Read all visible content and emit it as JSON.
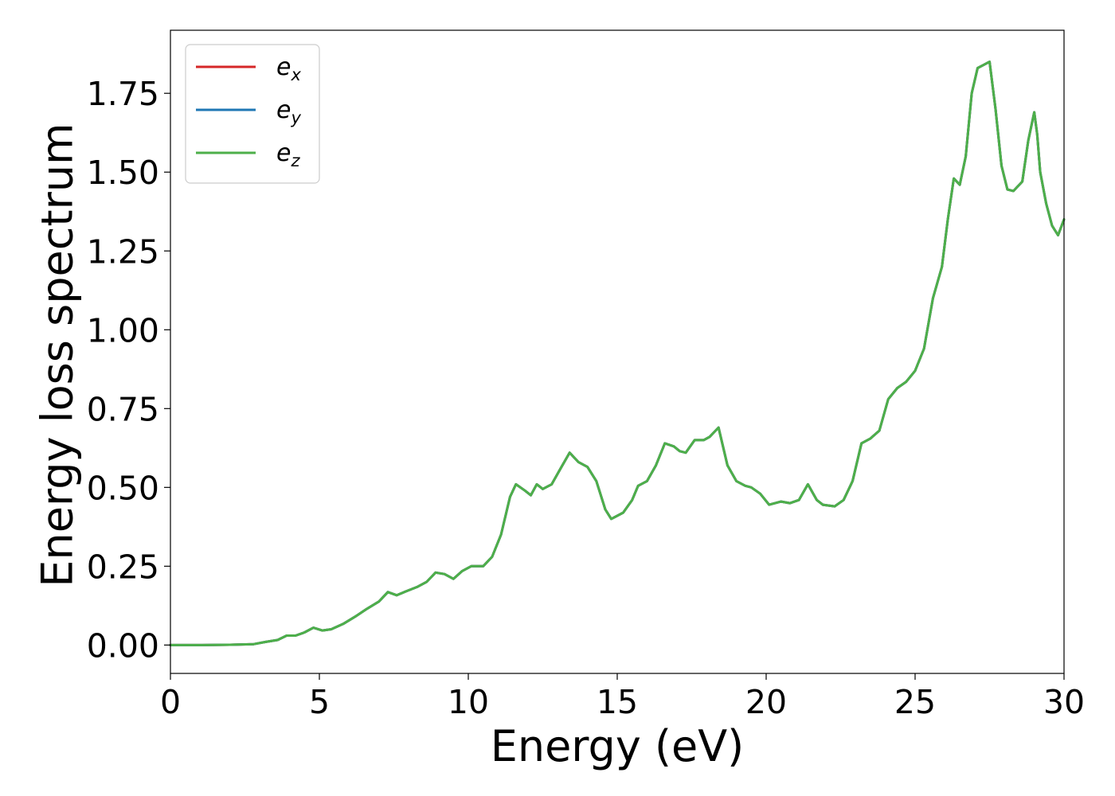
{
  "chart_data": {
    "type": "line",
    "title": "",
    "xlabel": "Energy (eV)",
    "ylabel": "Energy loss spectrum",
    "xlim": [
      0,
      30
    ],
    "ylim": [
      -0.09,
      1.95
    ],
    "x_ticks": [
      0,
      5,
      10,
      15,
      20,
      25,
      30
    ],
    "x_tick_labels": [
      "0",
      "5",
      "10",
      "15",
      "20",
      "25",
      "30"
    ],
    "y_ticks": [
      0.0,
      0.25,
      0.5,
      0.75,
      1.0,
      1.25,
      1.5,
      1.75
    ],
    "y_tick_labels": [
      "0.00",
      "0.25",
      "0.50",
      "0.75",
      "1.00",
      "1.25",
      "1.50",
      "1.75"
    ],
    "grid": false,
    "legend_position": "top-left",
    "x": [
      0,
      1,
      2,
      2.8,
      3.2,
      3.6,
      3.9,
      4.2,
      4.5,
      4.8,
      5.1,
      5.4,
      5.8,
      6.2,
      6.6,
      7.0,
      7.3,
      7.6,
      7.9,
      8.3,
      8.6,
      8.9,
      9.2,
      9.5,
      9.8,
      10.1,
      10.5,
      10.8,
      11.1,
      11.4,
      11.6,
      11.9,
      12.1,
      12.3,
      12.5,
      12.8,
      13.1,
      13.4,
      13.7,
      14.0,
      14.3,
      14.6,
      14.8,
      15.2,
      15.5,
      15.7,
      16.0,
      16.3,
      16.6,
      16.9,
      17.1,
      17.3,
      17.6,
      17.9,
      18.1,
      18.4,
      18.7,
      19.0,
      19.3,
      19.5,
      19.8,
      20.1,
      20.5,
      20.8,
      21.1,
      21.4,
      21.7,
      21.9,
      22.3,
      22.6,
      22.9,
      23.2,
      23.5,
      23.8,
      24.1,
      24.4,
      24.7,
      25.0,
      25.3,
      25.6,
      25.9,
      26.1,
      26.3,
      26.5,
      26.7,
      26.9,
      27.1,
      27.3,
      27.5,
      27.7,
      27.9,
      28.1,
      28.3,
      28.6,
      28.8,
      29.0,
      29.1,
      29.2,
      29.4,
      29.6,
      29.8,
      30.0
    ],
    "series": [
      {
        "name": "e_x",
        "color": "#d62728",
        "values": [
          0.0,
          0.0,
          0.001,
          0.003,
          0.01,
          0.016,
          0.03,
          0.03,
          0.04,
          0.055,
          0.046,
          0.05,
          0.067,
          0.09,
          0.115,
          0.138,
          0.168,
          0.158,
          0.17,
          0.185,
          0.2,
          0.23,
          0.225,
          0.21,
          0.235,
          0.25,
          0.25,
          0.28,
          0.35,
          0.47,
          0.51,
          0.49,
          0.475,
          0.51,
          0.495,
          0.51,
          0.56,
          0.61,
          0.58,
          0.565,
          0.52,
          0.43,
          0.4,
          0.42,
          0.46,
          0.505,
          0.52,
          0.57,
          0.64,
          0.63,
          0.615,
          0.61,
          0.65,
          0.65,
          0.66,
          0.69,
          0.57,
          0.52,
          0.505,
          0.5,
          0.48,
          0.445,
          0.455,
          0.45,
          0.46,
          0.51,
          0.46,
          0.445,
          0.44,
          0.46,
          0.52,
          0.64,
          0.655,
          0.68,
          0.78,
          0.815,
          0.835,
          0.87,
          0.94,
          1.1,
          1.2,
          1.35,
          1.48,
          1.46,
          1.55,
          1.75,
          1.83,
          1.84,
          1.85,
          1.7,
          1.52,
          1.445,
          1.44,
          1.47,
          1.6,
          1.69,
          1.62,
          1.5,
          1.4,
          1.33,
          1.3,
          1.35
        ]
      },
      {
        "name": "e_y",
        "color": "#1f77b4",
        "values": [
          0.0,
          0.0,
          0.001,
          0.003,
          0.01,
          0.016,
          0.03,
          0.03,
          0.04,
          0.055,
          0.046,
          0.05,
          0.067,
          0.09,
          0.115,
          0.138,
          0.168,
          0.158,
          0.17,
          0.185,
          0.2,
          0.23,
          0.225,
          0.21,
          0.235,
          0.25,
          0.25,
          0.28,
          0.35,
          0.47,
          0.51,
          0.49,
          0.475,
          0.51,
          0.495,
          0.51,
          0.56,
          0.61,
          0.58,
          0.565,
          0.52,
          0.43,
          0.4,
          0.42,
          0.46,
          0.505,
          0.52,
          0.57,
          0.64,
          0.63,
          0.615,
          0.61,
          0.65,
          0.65,
          0.66,
          0.69,
          0.57,
          0.52,
          0.505,
          0.5,
          0.48,
          0.445,
          0.455,
          0.45,
          0.46,
          0.51,
          0.46,
          0.445,
          0.44,
          0.46,
          0.52,
          0.64,
          0.655,
          0.68,
          0.78,
          0.815,
          0.835,
          0.87,
          0.94,
          1.1,
          1.2,
          1.35,
          1.48,
          1.46,
          1.55,
          1.75,
          1.83,
          1.84,
          1.85,
          1.7,
          1.52,
          1.445,
          1.44,
          1.47,
          1.6,
          1.69,
          1.62,
          1.5,
          1.4,
          1.33,
          1.3,
          1.35
        ]
      },
      {
        "name": "e_z",
        "color": "#4daf4a",
        "values": [
          0.0,
          0.0,
          0.001,
          0.003,
          0.01,
          0.016,
          0.03,
          0.03,
          0.04,
          0.055,
          0.046,
          0.05,
          0.067,
          0.09,
          0.115,
          0.138,
          0.168,
          0.158,
          0.17,
          0.185,
          0.2,
          0.23,
          0.225,
          0.21,
          0.235,
          0.25,
          0.25,
          0.28,
          0.35,
          0.47,
          0.51,
          0.49,
          0.475,
          0.51,
          0.495,
          0.51,
          0.56,
          0.61,
          0.58,
          0.565,
          0.52,
          0.43,
          0.4,
          0.42,
          0.46,
          0.505,
          0.52,
          0.57,
          0.64,
          0.63,
          0.615,
          0.61,
          0.65,
          0.65,
          0.66,
          0.69,
          0.57,
          0.52,
          0.505,
          0.5,
          0.48,
          0.445,
          0.455,
          0.45,
          0.46,
          0.51,
          0.46,
          0.445,
          0.44,
          0.46,
          0.52,
          0.64,
          0.655,
          0.68,
          0.78,
          0.815,
          0.835,
          0.87,
          0.94,
          1.1,
          1.2,
          1.35,
          1.48,
          1.46,
          1.55,
          1.75,
          1.83,
          1.84,
          1.85,
          1.7,
          1.52,
          1.445,
          1.44,
          1.47,
          1.6,
          1.69,
          1.62,
          1.5,
          1.4,
          1.33,
          1.3,
          1.35
        ]
      }
    ]
  }
}
